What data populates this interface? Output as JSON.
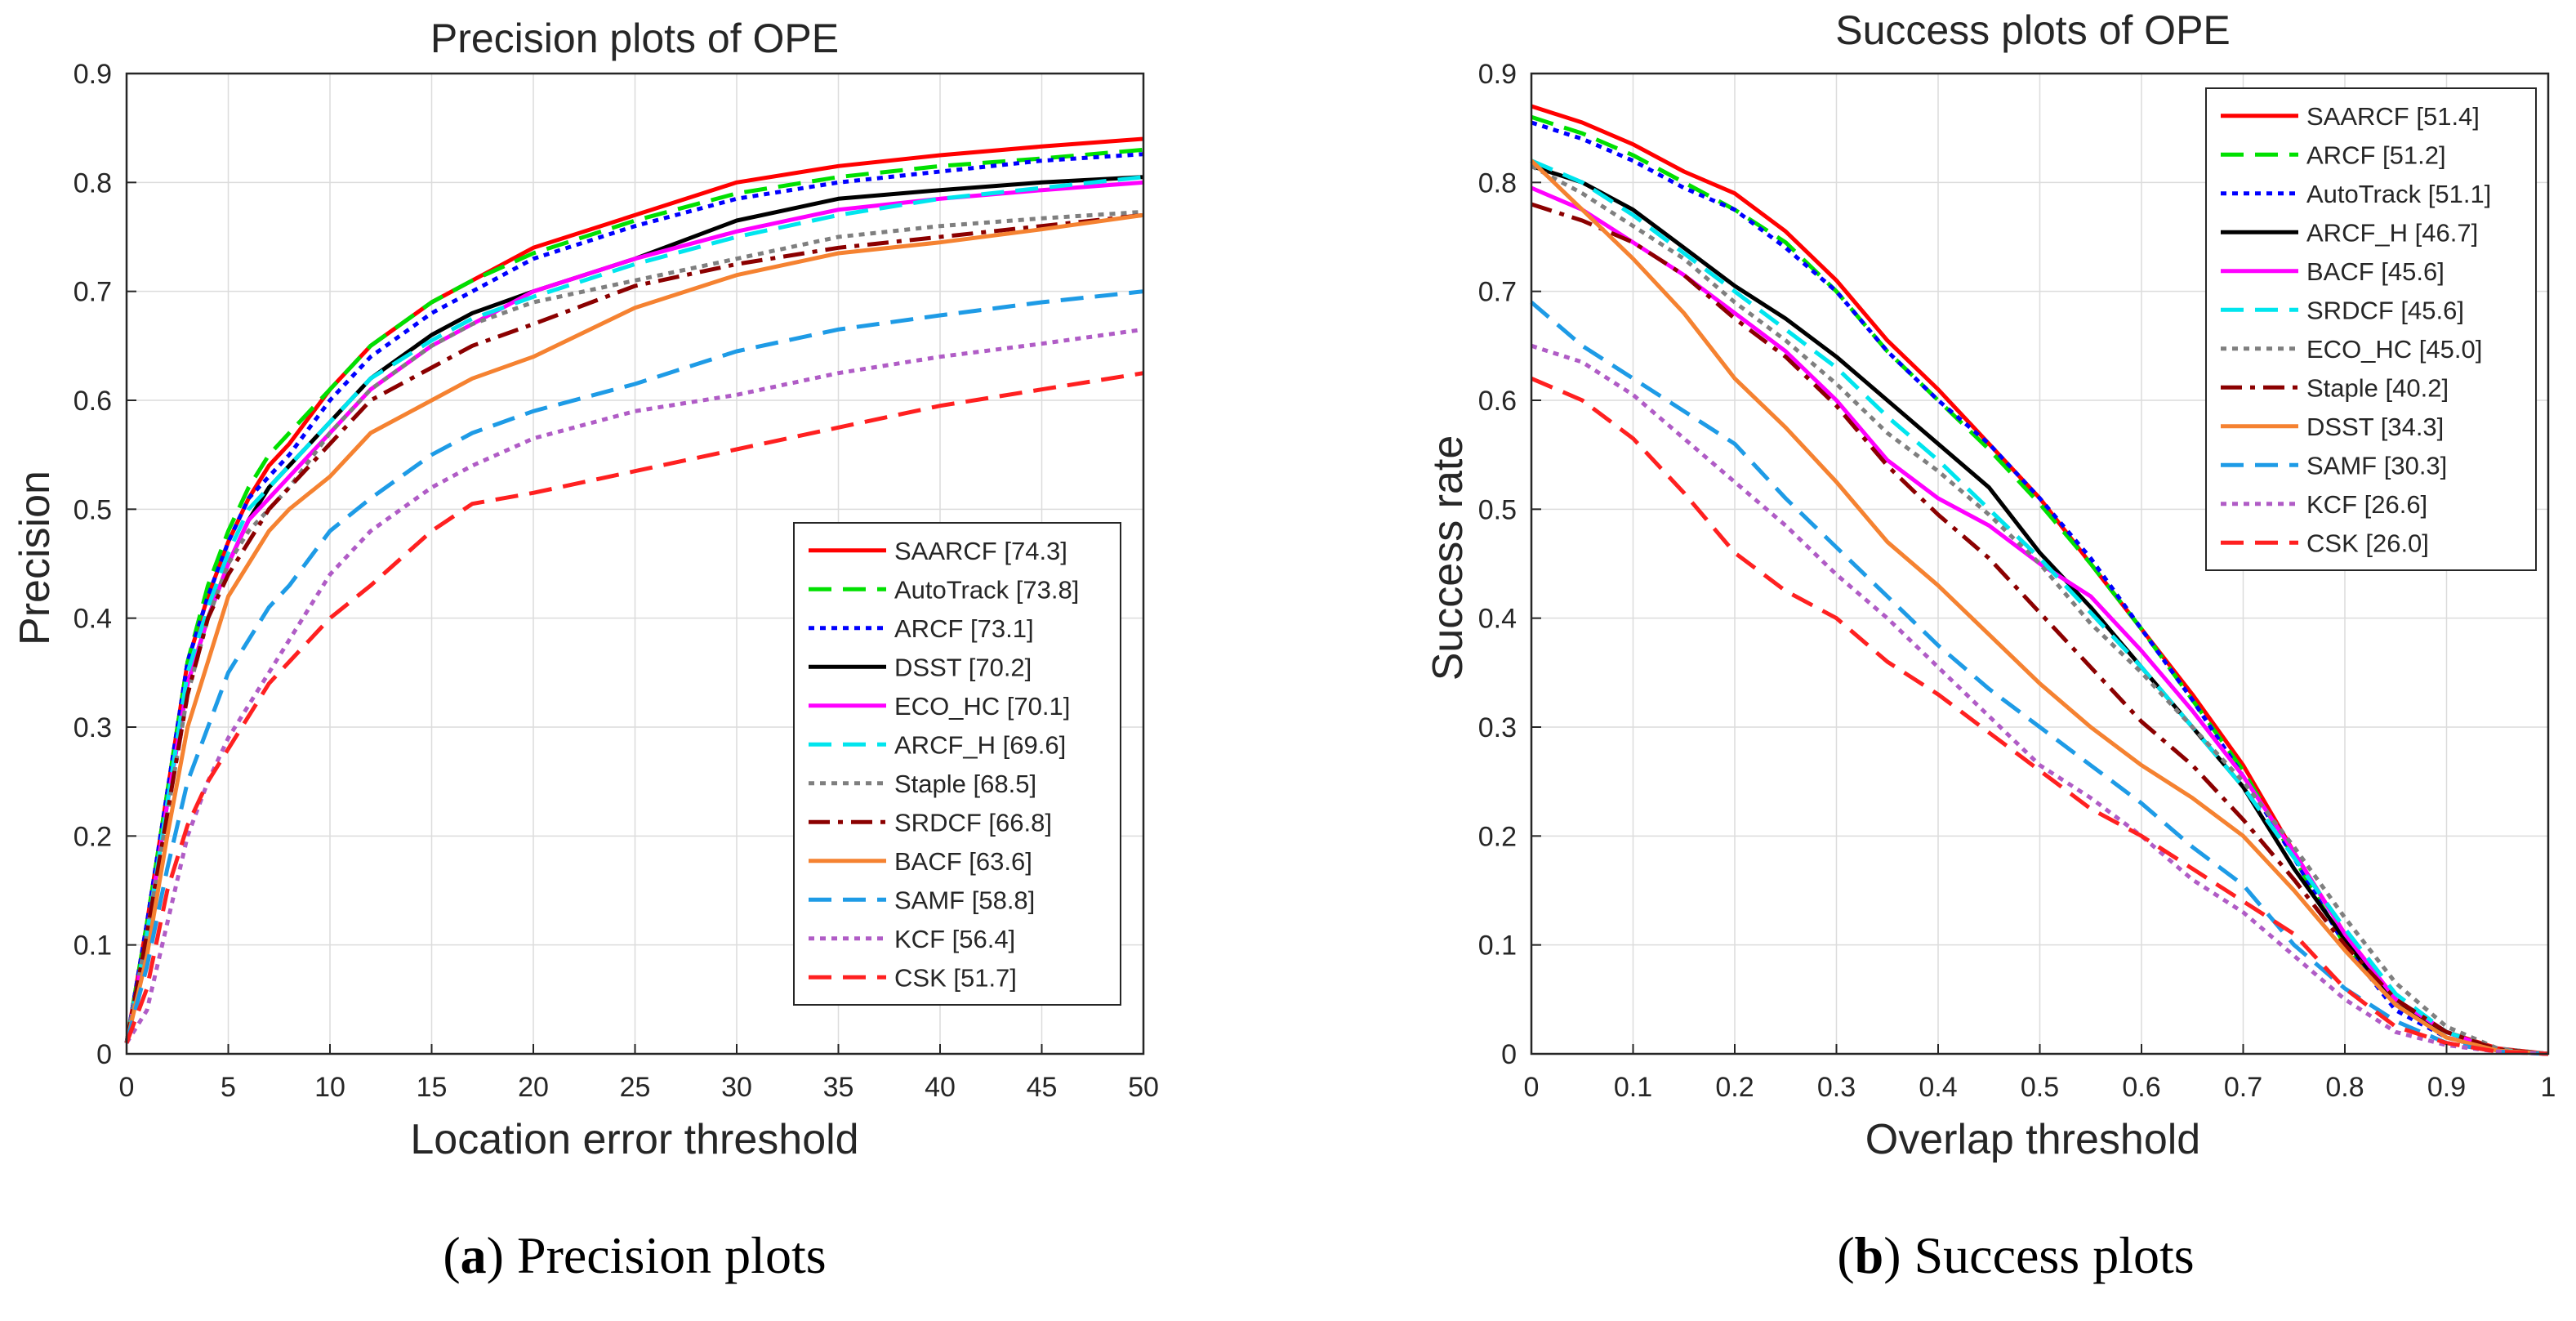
{
  "captions": [
    {
      "letter": "a",
      "text": "Precision plots"
    },
    {
      "letter": "b",
      "text": "Success plots"
    }
  ],
  "chart_data": [
    {
      "type": "line",
      "title": "Precision plots of OPE",
      "xlabel": "Location error threshold",
      "ylabel": "Precision",
      "xlim": [
        0,
        50
      ],
      "ylim": [
        0,
        0.9
      ],
      "xticks": [
        0,
        5,
        10,
        15,
        20,
        25,
        30,
        35,
        40,
        45,
        50
      ],
      "yticks": [
        0,
        0.1,
        0.2,
        0.3,
        0.4,
        0.5,
        0.6,
        0.7,
        0.8,
        0.9
      ],
      "grid": true,
      "legend_position": "bottom-right",
      "x": [
        0,
        1,
        2,
        3,
        4,
        5,
        6,
        7,
        8,
        10,
        12,
        15,
        17,
        20,
        25,
        30,
        35,
        40,
        45,
        50
      ],
      "series": [
        {
          "name": "SAARCF [74.3]",
          "color": "#ff0000",
          "dash": "solid",
          "values": [
            0.01,
            0.12,
            0.24,
            0.36,
            0.42,
            0.47,
            0.51,
            0.54,
            0.56,
            0.61,
            0.65,
            0.69,
            0.71,
            0.74,
            0.77,
            0.8,
            0.815,
            0.825,
            0.833,
            0.84
          ]
        },
        {
          "name": "AutoTrack [73.8]",
          "color": "#00e000",
          "dash": "dash",
          "values": [
            0.01,
            0.12,
            0.24,
            0.36,
            0.43,
            0.48,
            0.52,
            0.55,
            0.57,
            0.61,
            0.65,
            0.69,
            0.71,
            0.735,
            0.765,
            0.79,
            0.805,
            0.815,
            0.822,
            0.83
          ]
        },
        {
          "name": "ARCF [73.1]",
          "color": "#0000ff",
          "dash": "dot",
          "values": [
            0.01,
            0.12,
            0.24,
            0.36,
            0.42,
            0.47,
            0.51,
            0.53,
            0.55,
            0.6,
            0.64,
            0.68,
            0.7,
            0.73,
            0.76,
            0.785,
            0.8,
            0.81,
            0.82,
            0.826
          ]
        },
        {
          "name": "DSST [70.2]",
          "color": "#000000",
          "dash": "solid",
          "values": [
            0.01,
            0.11,
            0.23,
            0.34,
            0.4,
            0.45,
            0.49,
            0.52,
            0.54,
            0.58,
            0.62,
            0.66,
            0.68,
            0.7,
            0.73,
            0.765,
            0.785,
            0.793,
            0.8,
            0.805
          ]
        },
        {
          "name": "ECO_HC [70.1]",
          "color": "#ff00ff",
          "dash": "solid",
          "values": [
            0.01,
            0.11,
            0.23,
            0.34,
            0.4,
            0.45,
            0.49,
            0.51,
            0.53,
            0.57,
            0.61,
            0.65,
            0.67,
            0.7,
            0.73,
            0.755,
            0.775,
            0.785,
            0.793,
            0.8
          ]
        },
        {
          "name": "ARCF_H [69.6]",
          "color": "#00e5ee",
          "dash": "dash",
          "values": [
            0.01,
            0.11,
            0.23,
            0.35,
            0.41,
            0.46,
            0.5,
            0.52,
            0.54,
            0.58,
            0.62,
            0.655,
            0.675,
            0.695,
            0.725,
            0.75,
            0.77,
            0.785,
            0.795,
            0.805
          ]
        },
        {
          "name": "Staple [68.5]",
          "color": "#7f7f7f",
          "dash": "dot",
          "values": [
            0.01,
            0.11,
            0.22,
            0.33,
            0.4,
            0.45,
            0.48,
            0.5,
            0.52,
            0.57,
            0.61,
            0.65,
            0.67,
            0.69,
            0.71,
            0.73,
            0.75,
            0.76,
            0.767,
            0.773
          ]
        },
        {
          "name": "SRDCF [66.8]",
          "color": "#8b0000",
          "dash": "dashdot",
          "values": [
            0.01,
            0.11,
            0.22,
            0.33,
            0.4,
            0.44,
            0.47,
            0.5,
            0.52,
            0.56,
            0.6,
            0.63,
            0.65,
            0.67,
            0.705,
            0.725,
            0.74,
            0.75,
            0.76,
            0.77
          ]
        },
        {
          "name": "BACF [63.6]",
          "color": "#f58231",
          "dash": "solid",
          "values": [
            0.01,
            0.09,
            0.2,
            0.3,
            0.36,
            0.42,
            0.45,
            0.48,
            0.5,
            0.53,
            0.57,
            0.6,
            0.62,
            0.64,
            0.685,
            0.715,
            0.735,
            0.745,
            0.757,
            0.77
          ]
        },
        {
          "name": "SAMF [58.8]",
          "color": "#1e9be6",
          "dash": "dash",
          "values": [
            0.01,
            0.08,
            0.17,
            0.25,
            0.3,
            0.35,
            0.38,
            0.41,
            0.43,
            0.48,
            0.51,
            0.55,
            0.57,
            0.59,
            0.615,
            0.645,
            0.665,
            0.678,
            0.69,
            0.7
          ]
        },
        {
          "name": "KCF [56.4]",
          "color": "#b05cc6",
          "dash": "dot",
          "values": [
            0.01,
            0.04,
            0.12,
            0.2,
            0.25,
            0.29,
            0.32,
            0.35,
            0.38,
            0.44,
            0.48,
            0.52,
            0.54,
            0.565,
            0.59,
            0.605,
            0.625,
            0.64,
            0.652,
            0.665
          ]
        },
        {
          "name": "CSK [51.7]",
          "color": "#ff2020",
          "dash": "dash",
          "values": [
            0.01,
            0.06,
            0.15,
            0.21,
            0.25,
            0.28,
            0.31,
            0.34,
            0.36,
            0.4,
            0.43,
            0.48,
            0.505,
            0.515,
            0.535,
            0.555,
            0.575,
            0.595,
            0.61,
            0.625
          ]
        }
      ]
    },
    {
      "type": "line",
      "title": "Success plots of OPE",
      "xlabel": "Overlap threshold",
      "ylabel": "Success rate",
      "xlim": [
        0,
        1
      ],
      "ylim": [
        0,
        0.9
      ],
      "xticks": [
        0,
        0.1,
        0.2,
        0.3,
        0.4,
        0.5,
        0.6,
        0.7,
        0.8,
        0.9,
        1
      ],
      "yticks": [
        0,
        0.1,
        0.2,
        0.3,
        0.4,
        0.5,
        0.6,
        0.7,
        0.8,
        0.9
      ],
      "grid": true,
      "legend_position": "top-right",
      "x": [
        0,
        0.05,
        0.1,
        0.15,
        0.2,
        0.25,
        0.3,
        0.35,
        0.4,
        0.45,
        0.5,
        0.55,
        0.6,
        0.65,
        0.7,
        0.75,
        0.8,
        0.85,
        0.9,
        0.95,
        1.0
      ],
      "series": [
        {
          "name": "SAARCF [51.4]",
          "color": "#ff0000",
          "dash": "solid",
          "values": [
            0.87,
            0.855,
            0.835,
            0.81,
            0.79,
            0.755,
            0.71,
            0.655,
            0.61,
            0.56,
            0.51,
            0.45,
            0.39,
            0.33,
            0.265,
            0.185,
            0.11,
            0.05,
            0.02,
            0.005,
            0.0
          ]
        },
        {
          "name": "ARCF [51.2]",
          "color": "#00e000",
          "dash": "dash",
          "values": [
            0.86,
            0.845,
            0.825,
            0.8,
            0.775,
            0.745,
            0.7,
            0.645,
            0.6,
            0.555,
            0.505,
            0.45,
            0.39,
            0.325,
            0.26,
            0.18,
            0.1,
            0.045,
            0.015,
            0.003,
            0.0
          ]
        },
        {
          "name": "AutoTrack [51.1]",
          "color": "#0000ff",
          "dash": "dot",
          "values": [
            0.855,
            0.84,
            0.82,
            0.795,
            0.775,
            0.74,
            0.7,
            0.645,
            0.6,
            0.56,
            0.51,
            0.455,
            0.39,
            0.325,
            0.255,
            0.18,
            0.1,
            0.04,
            0.015,
            0.003,
            0.0
          ]
        },
        {
          "name": "ARCF_H [46.7]",
          "color": "#000000",
          "dash": "solid",
          "values": [
            0.815,
            0.8,
            0.775,
            0.74,
            0.705,
            0.675,
            0.64,
            0.6,
            0.56,
            0.52,
            0.46,
            0.41,
            0.355,
            0.3,
            0.245,
            0.17,
            0.105,
            0.045,
            0.02,
            0.003,
            0.0
          ]
        },
        {
          "name": "BACF [45.6]",
          "color": "#ff00ff",
          "dash": "solid",
          "values": [
            0.795,
            0.775,
            0.745,
            0.715,
            0.68,
            0.645,
            0.6,
            0.545,
            0.51,
            0.485,
            0.45,
            0.42,
            0.37,
            0.315,
            0.255,
            0.185,
            0.11,
            0.05,
            0.02,
            0.003,
            0.0
          ]
        },
        {
          "name": "SRDCF [45.6]",
          "color": "#00e5ee",
          "dash": "dash",
          "values": [
            0.82,
            0.8,
            0.77,
            0.735,
            0.7,
            0.665,
            0.63,
            0.585,
            0.545,
            0.5,
            0.455,
            0.405,
            0.355,
            0.3,
            0.245,
            0.18,
            0.115,
            0.055,
            0.02,
            0.004,
            0.0
          ]
        },
        {
          "name": "ECO_HC [45.0]",
          "color": "#7f7f7f",
          "dash": "dot",
          "values": [
            0.815,
            0.79,
            0.76,
            0.73,
            0.69,
            0.655,
            0.615,
            0.57,
            0.535,
            0.495,
            0.45,
            0.395,
            0.35,
            0.3,
            0.25,
            0.19,
            0.125,
            0.065,
            0.025,
            0.005,
            0.0
          ]
        },
        {
          "name": "Staple [40.2]",
          "color": "#8b0000",
          "dash": "dashdot",
          "values": [
            0.78,
            0.765,
            0.745,
            0.715,
            0.675,
            0.64,
            0.595,
            0.54,
            0.495,
            0.455,
            0.405,
            0.355,
            0.305,
            0.265,
            0.215,
            0.16,
            0.1,
            0.05,
            0.02,
            0.004,
            0.0
          ]
        },
        {
          "name": "DSST [34.3]",
          "color": "#f58231",
          "dash": "solid",
          "values": [
            0.82,
            0.775,
            0.73,
            0.68,
            0.62,
            0.575,
            0.525,
            0.47,
            0.43,
            0.385,
            0.34,
            0.3,
            0.265,
            0.235,
            0.2,
            0.15,
            0.095,
            0.045,
            0.015,
            0.003,
            0.0
          ]
        },
        {
          "name": "SAMF [30.3]",
          "color": "#1e9be6",
          "dash": "dash",
          "values": [
            0.69,
            0.65,
            0.62,
            0.59,
            0.56,
            0.51,
            0.465,
            0.42,
            0.375,
            0.335,
            0.3,
            0.265,
            0.23,
            0.19,
            0.155,
            0.1,
            0.06,
            0.03,
            0.01,
            0.002,
            0.0
          ]
        },
        {
          "name": "KCF [26.6]",
          "color": "#b05cc6",
          "dash": "dot",
          "values": [
            0.65,
            0.635,
            0.605,
            0.565,
            0.525,
            0.485,
            0.44,
            0.4,
            0.355,
            0.31,
            0.265,
            0.235,
            0.2,
            0.16,
            0.13,
            0.09,
            0.05,
            0.02,
            0.008,
            0.002,
            0.0
          ]
        },
        {
          "name": "CSK [26.0]",
          "color": "#ff2020",
          "dash": "dash",
          "values": [
            0.62,
            0.6,
            0.565,
            0.515,
            0.46,
            0.425,
            0.4,
            0.36,
            0.33,
            0.295,
            0.26,
            0.225,
            0.2,
            0.17,
            0.14,
            0.11,
            0.06,
            0.025,
            0.01,
            0.002,
            0.0
          ]
        }
      ]
    }
  ]
}
